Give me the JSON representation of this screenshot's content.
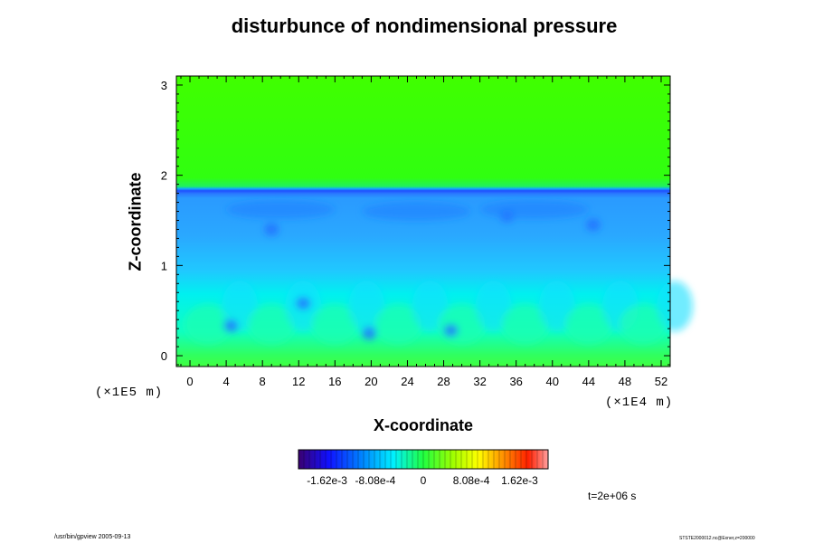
{
  "chart_data": {
    "type": "heatmap",
    "title": "disturbunce of nondimensional pressure",
    "xlabel": "X-coordinate",
    "ylabel": "Z-coordinate",
    "x_unit": "(×1E4 m)",
    "y_unit": "(×1E5 m)",
    "xlim": [
      -1.5,
      53
    ],
    "ylim": [
      -0.12,
      3.1
    ],
    "x_ticks": [
      "0",
      "4",
      "8",
      "12",
      "16",
      "20",
      "24",
      "28",
      "32",
      "36",
      "40",
      "44",
      "48",
      "52"
    ],
    "x_tick_values": [
      0,
      4,
      8,
      12,
      16,
      20,
      24,
      28,
      32,
      36,
      40,
      44,
      48,
      52
    ],
    "y_ticks": [
      "0",
      "1",
      "2",
      "3"
    ],
    "y_tick_values": [
      0,
      1,
      2,
      3
    ],
    "colorbar": {
      "min": -0.0021,
      "max": 0.0021,
      "tick_labels": [
        "-1.62e-3",
        "-8.08e-4",
        "0",
        "8.08e-4",
        "1.62e-3"
      ],
      "tick_values": [
        -0.00162,
        -0.000808,
        0,
        0.000808,
        0.00162
      ]
    },
    "field_description": [
      {
        "z_range": [
          1.85,
          3.1
        ],
        "value": 0
      },
      {
        "z_range": [
          1.78,
          1.85
        ],
        "value": -0.0016
      },
      {
        "z_range": [
          1.2,
          1.78
        ],
        "value": -0.0011
      },
      {
        "z_range": [
          0.6,
          1.2
        ],
        "value": -0.0008
      },
      {
        "z_range": [
          0.1,
          0.6
        ],
        "value": -0.0005
      },
      {
        "z_range": [
          -0.12,
          0.1
        ],
        "value": -0.0001
      }
    ],
    "grid": false,
    "legend": "colorbar-bottom"
  },
  "time_label": "t=2e+06 s",
  "footer_left": "/usr/bin/gpview 2005-09-13",
  "footer_right": "STSTE2000012.nc@Exner,z=200000",
  "colors": {
    "upper_field": "#30ff00",
    "interface_band": "#1860ff",
    "lower_blue": "#2090ff",
    "lower_cyan": "#00ffee",
    "surface_green": "#30ff60"
  }
}
